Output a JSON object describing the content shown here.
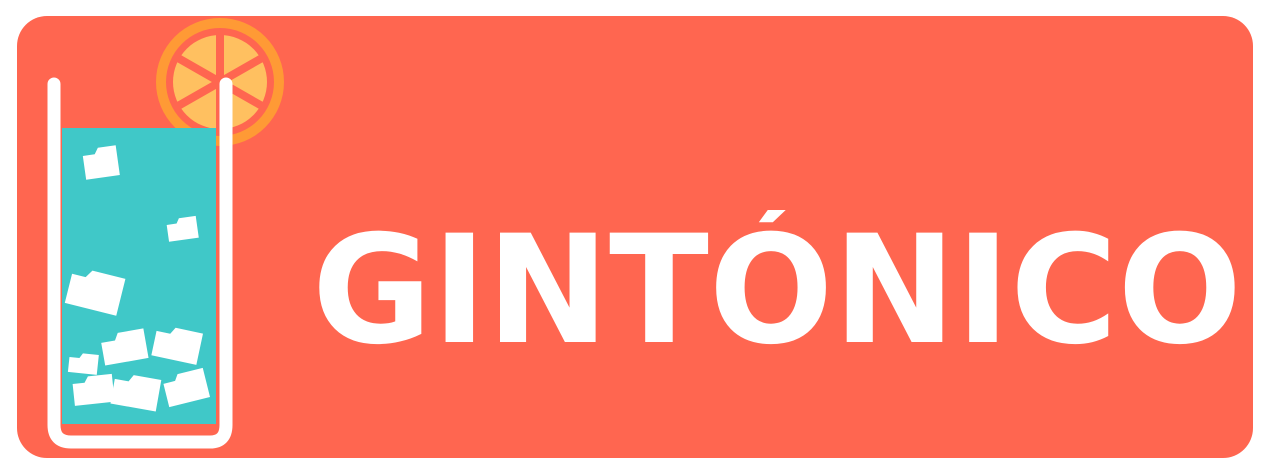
{
  "logo": {
    "wordmark": "GINTÓNICO",
    "icon": "gin-glass-with-orange-and-folder-ice-icon"
  },
  "colors": {
    "background": "#ff6650",
    "glass_outline": "#ffffff",
    "liquid": "#40c8c8",
    "orange_rim": "#ff9a35",
    "orange_flesh": "#ffc060",
    "text": "#ffffff"
  }
}
